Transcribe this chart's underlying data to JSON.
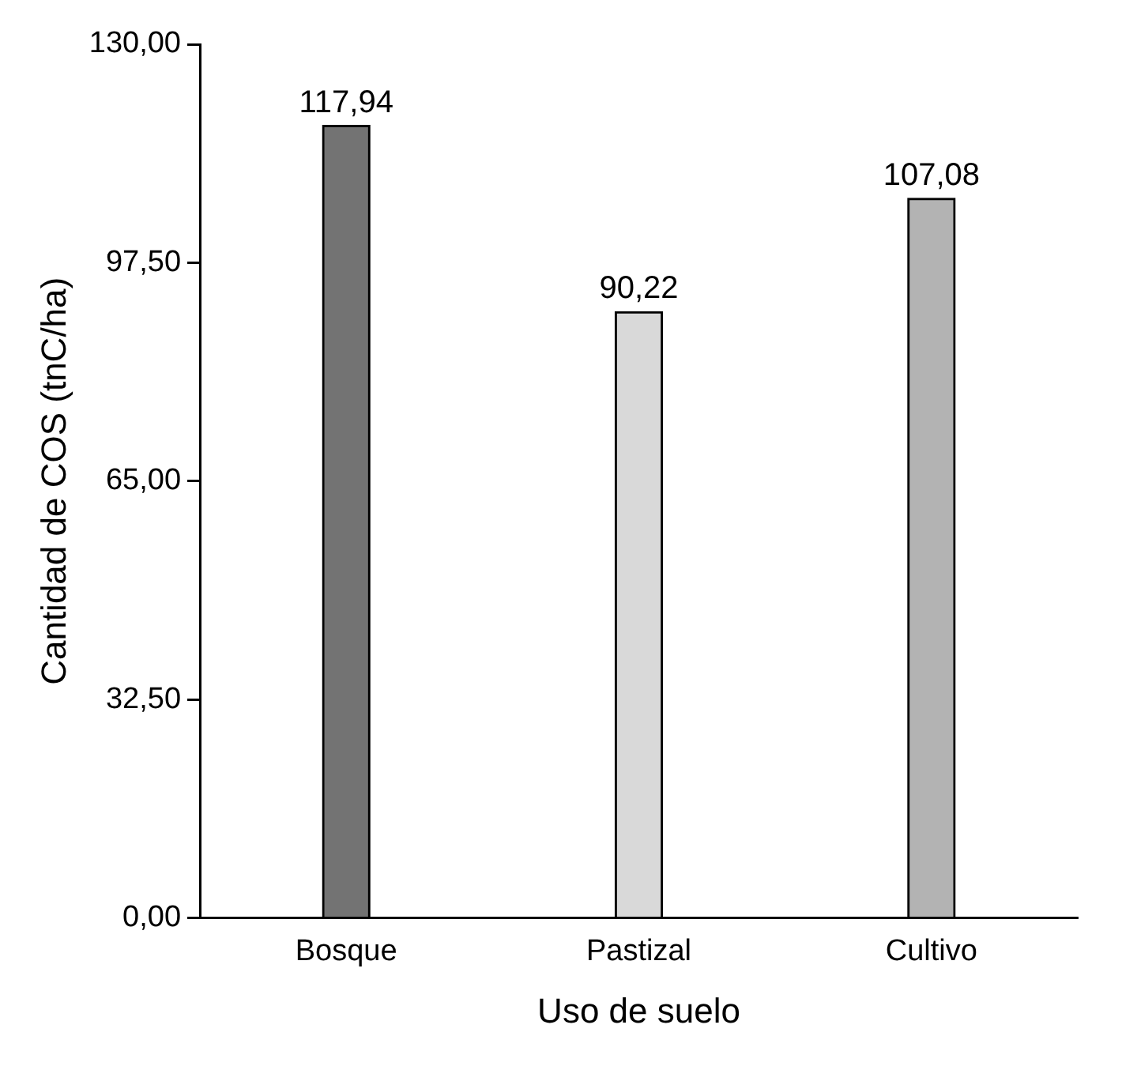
{
  "chart_data": {
    "type": "bar",
    "xlabel": "Uso de suelo",
    "ylabel": "Cantidad de COS (tnC/ha)",
    "categories": [
      "Bosque",
      "Pastizal",
      "Cultivo"
    ],
    "values": [
      117.94,
      90.22,
      107.08
    ],
    "colors": [
      "#737373",
      "#d9d9d9",
      "#b3b3b3"
    ],
    "value_labels": [
      "117,94",
      "90,22",
      "107,08"
    ],
    "ylim": [
      0,
      130
    ],
    "yticks": [
      {
        "value": 0,
        "label": "0,00"
      },
      {
        "value": 32.5,
        "label": "32,50"
      },
      {
        "value": 65,
        "label": "65,00"
      },
      {
        "value": 97.5,
        "label": "97,50"
      },
      {
        "value": 130,
        "label": "130,00"
      }
    ],
    "grid": false,
    "legend": false
  }
}
